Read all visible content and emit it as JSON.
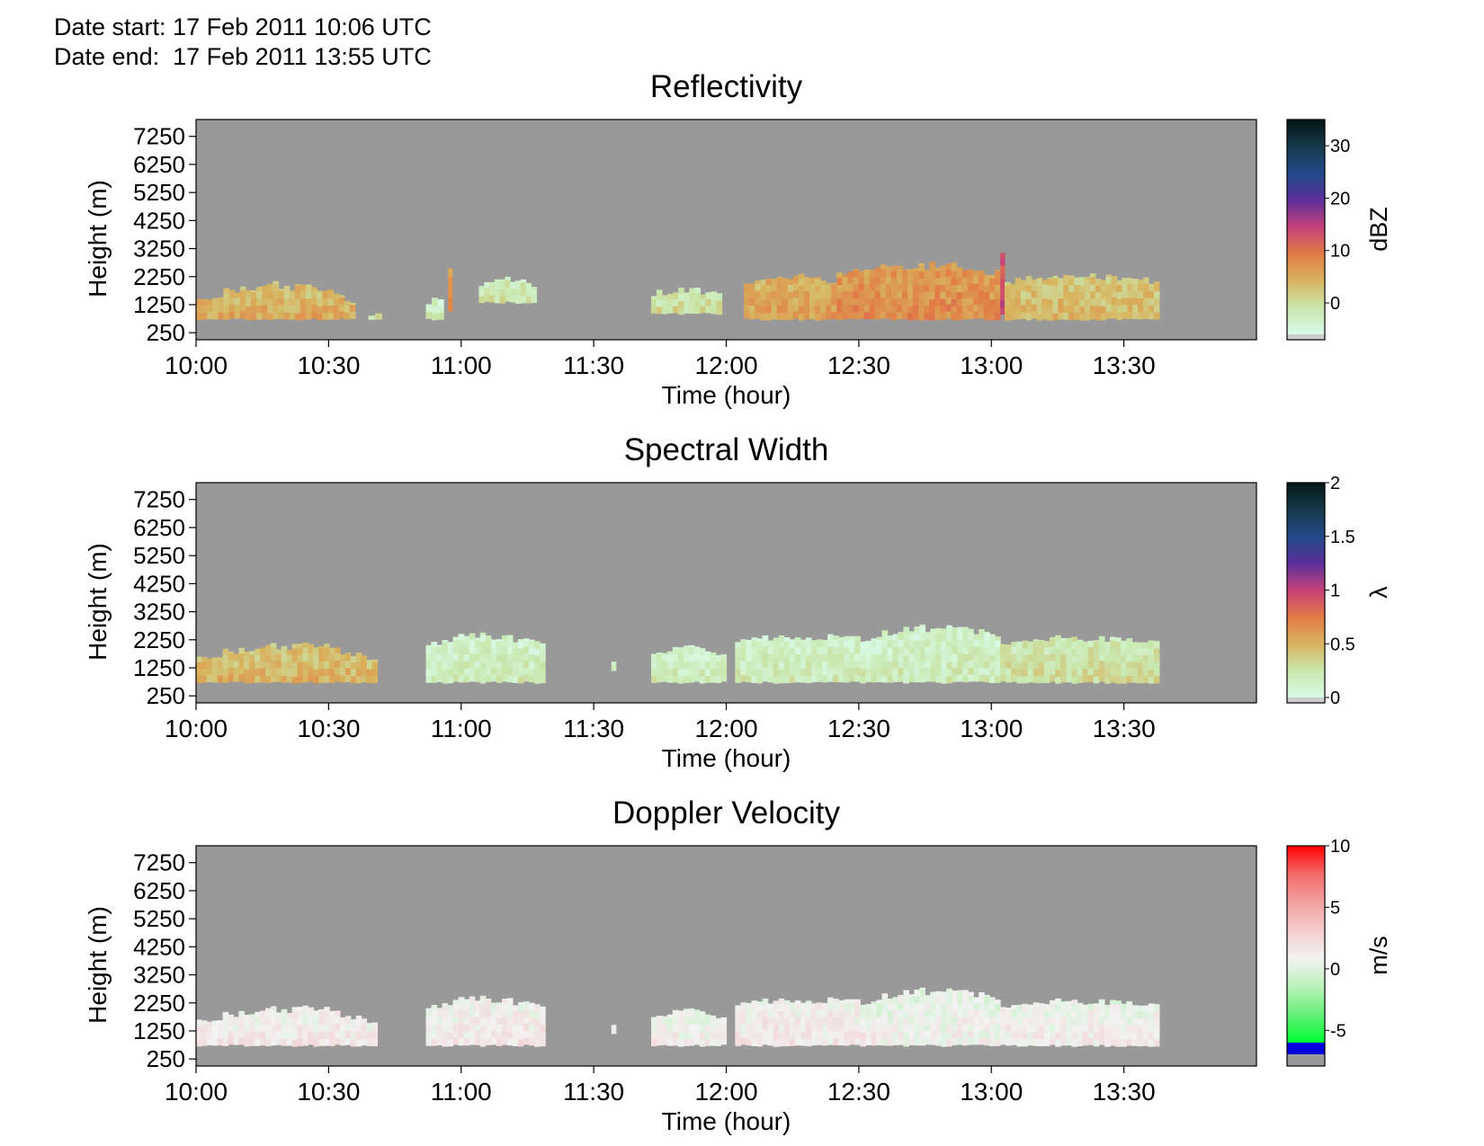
{
  "header": {
    "date_start": "Date start: 17 Feb 2011 10:06 UTC",
    "date_end": "Date end:  17 Feb 2011 13:55 UTC"
  },
  "colors": {
    "background": "#999999",
    "refl_scale": [
      "#d8fae6",
      "#c9e7ad",
      "#d8b35e",
      "#e27b45",
      "#c4417a",
      "#5c2f9a",
      "#224a8a",
      "#163a4a",
      "#031516"
    ],
    "width_scale": [
      "#d8fae6",
      "#c9e7ad",
      "#d8b35e",
      "#e27b45",
      "#c4417a",
      "#5c2f9a",
      "#224a8a",
      "#163a4a",
      "#031516"
    ],
    "velocity_scale": [
      "#00ff33",
      "#66ee77",
      "#bbf2bb",
      "#f2f2f2",
      "#f3cccc",
      "#f0a0a0",
      "#f56a6a",
      "#ff0000"
    ]
  },
  "chart_data": [
    {
      "type": "heatmap",
      "title": "Reflectivity",
      "xlabel": "Time (hour)",
      "ylabel": "Height (m)",
      "x_ticks": [
        "10:00",
        "10:30",
        "11:00",
        "11:30",
        "12:00",
        "12:30",
        "13:00",
        "13:30"
      ],
      "x_range_hours": [
        10.0,
        14.0
      ],
      "y_ticks": [
        "7250",
        "6250",
        "5250",
        "4250",
        "3250",
        "2250",
        "1250",
        "250"
      ],
      "y_range_m": [
        0,
        7850
      ],
      "colorbar": {
        "label": "dBZ",
        "ticks": [
          "30",
          "20",
          "10",
          "0"
        ],
        "range": [
          -6,
          35
        ],
        "below_range_color": "#cccccc"
      },
      "segments": [
        {
          "t0": "10:00",
          "t1": "10:36",
          "base": 700,
          "top": 1500,
          "peak": 2250,
          "value": 5
        },
        {
          "t0": "10:39",
          "t1": "10:42",
          "base": 700,
          "top": 1000,
          "peak": 1000,
          "value": 0
        },
        {
          "t0": "10:52",
          "t1": "10:56",
          "base": 700,
          "top": 1500,
          "peak": 1600,
          "value": -2
        },
        {
          "t0": "10:57",
          "t1": "10:58",
          "base": 1000,
          "top": 2700,
          "peak": 2700,
          "value": 9
        },
        {
          "t0": "11:04",
          "t1": "11:17",
          "base": 1300,
          "top": 2100,
          "peak": 2300,
          "value": -1
        },
        {
          "t0": "11:43",
          "t1": "11:59",
          "base": 900,
          "top": 1800,
          "peak": 1900,
          "value": 0
        },
        {
          "t0": "12:04",
          "t1": "12:25",
          "base": 700,
          "top": 2200,
          "peak": 2400,
          "value": 6
        },
        {
          "t0": "12:25",
          "t1": "13:02",
          "base": 700,
          "top": 2500,
          "peak": 2850,
          "value": 8
        },
        {
          "t0": "13:02",
          "t1": "13:03",
          "base": 900,
          "top": 3150,
          "peak": 3150,
          "value": 14
        },
        {
          "t0": "13:03",
          "t1": "13:38",
          "base": 700,
          "top": 2200,
          "peak": 2450,
          "value": 4
        }
      ]
    },
    {
      "type": "heatmap",
      "title": "Spectral Width",
      "xlabel": "Time (hour)",
      "ylabel": "Height (m)",
      "x_ticks": [
        "10:00",
        "10:30",
        "11:00",
        "11:30",
        "12:00",
        "12:30",
        "13:00",
        "13:30"
      ],
      "x_range_hours": [
        10.0,
        14.0
      ],
      "y_ticks": [
        "7250",
        "6250",
        "5250",
        "4250",
        "3250",
        "2250",
        "1250",
        "250"
      ],
      "y_range_m": [
        0,
        7850
      ],
      "colorbar": {
        "label": "λ",
        "ticks": [
          "2",
          "1.5",
          "1",
          "0.5",
          "0"
        ],
        "range": [
          0,
          2
        ],
        "below_range_color": "#cccccc"
      },
      "segments": [
        {
          "t0": "10:00",
          "t1": "10:41",
          "base": 700,
          "top": 1700,
          "peak": 2300,
          "value": 0.5
        },
        {
          "t0": "10:52",
          "t1": "11:19",
          "base": 700,
          "top": 2200,
          "peak": 2550,
          "value": 0.2
        },
        {
          "t0": "11:34",
          "t1": "11:35",
          "base": 1100,
          "top": 1700,
          "peak": 1700,
          "value": 0.2
        },
        {
          "t0": "11:43",
          "t1": "12:00",
          "base": 700,
          "top": 1900,
          "peak": 2100,
          "value": 0.2
        },
        {
          "t0": "12:02",
          "t1": "12:34",
          "base": 700,
          "top": 2350,
          "peak": 2500,
          "value": 0.2
        },
        {
          "t0": "12:34",
          "t1": "13:02",
          "base": 700,
          "top": 2600,
          "peak": 2850,
          "value": 0.2
        },
        {
          "t0": "13:02",
          "t1": "13:38",
          "base": 700,
          "top": 2300,
          "peak": 2450,
          "value": 0.3
        }
      ]
    },
    {
      "type": "heatmap",
      "title": "Doppler Velocity",
      "xlabel": "Time (hour)",
      "ylabel": "Height (m)",
      "x_ticks": [
        "10:00",
        "10:30",
        "11:00",
        "11:30",
        "12:00",
        "12:30",
        "13:00",
        "13:30"
      ],
      "x_range_hours": [
        10.0,
        14.0
      ],
      "y_ticks": [
        "7250",
        "6250",
        "5250",
        "4250",
        "3250",
        "2250",
        "1250",
        "250"
      ],
      "y_range_m": [
        0,
        7850
      ],
      "colorbar": {
        "label": "m/s",
        "ticks": [
          "10",
          "5",
          "0",
          "-5"
        ],
        "range": [
          -6,
          10
        ],
        "below_range_color": "#0000dd"
      },
      "segments": [
        {
          "t0": "10:00",
          "t1": "10:41",
          "base": 700,
          "top": 1700,
          "peak": 2300,
          "value": 1.5
        },
        {
          "t0": "10:52",
          "t1": "11:19",
          "base": 700,
          "top": 2200,
          "peak": 2550,
          "value": 1.5
        },
        {
          "t0": "11:34",
          "t1": "11:35",
          "base": 1100,
          "top": 1700,
          "peak": 1700,
          "value": 1.5
        },
        {
          "t0": "11:43",
          "t1": "12:00",
          "base": 700,
          "top": 1900,
          "peak": 2100,
          "value": 1.2
        },
        {
          "t0": "12:02",
          "t1": "12:34",
          "base": 700,
          "top": 2350,
          "peak": 2500,
          "value": 1.5
        },
        {
          "t0": "12:34",
          "t1": "13:02",
          "base": 700,
          "top": 2600,
          "peak": 2850,
          "value": 1.0
        },
        {
          "t0": "13:02",
          "t1": "13:38",
          "base": 700,
          "top": 2300,
          "peak": 2450,
          "value": 1.2
        }
      ]
    }
  ]
}
